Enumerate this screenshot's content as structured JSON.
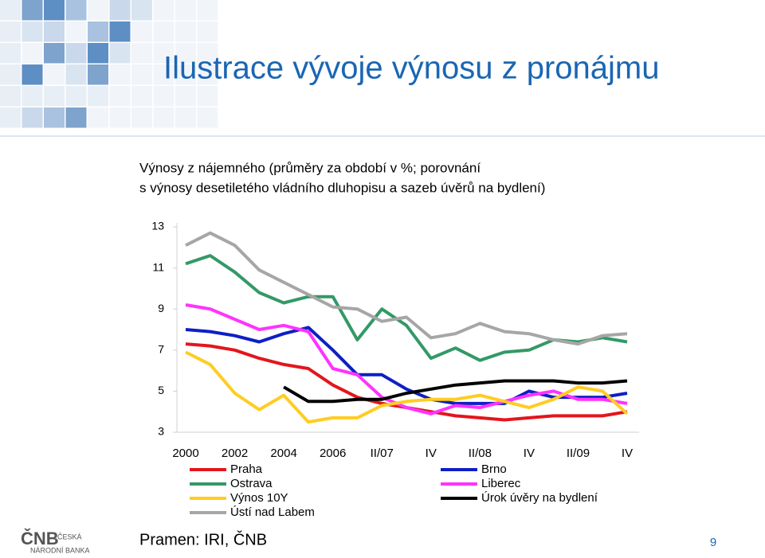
{
  "slide": {
    "title": "Ilustrace vývoje výnosu z pronájmu",
    "source": "Pramen: IRI, ČNB",
    "page_number": "9",
    "logo": [
      "ČNB",
      "ČESKÁ",
      "NÁRODNÍ BANKA"
    ]
  },
  "chart_data": {
    "type": "line",
    "title": [
      "Výnosy z nájemného (průměry za období v %; porovnání",
      "s výnosy desetiletého vládního dluhopisu a sazeb úvěrů na bydlení)"
    ],
    "categories": [
      "2000",
      null,
      "2002",
      null,
      "2004",
      null,
      "2006",
      null,
      "II/07",
      null,
      "IV",
      null,
      "II/08",
      null,
      "IV",
      null,
      "II/09",
      null,
      "IV"
    ],
    "ylim": [
      3,
      13
    ],
    "yticks": [
      3,
      5,
      7,
      9,
      11,
      13
    ],
    "grid": false,
    "series": [
      {
        "name": "Praha",
        "color": "#e3161c",
        "values": [
          7.3,
          7.2,
          7.0,
          6.6,
          6.3,
          6.1,
          5.3,
          4.7,
          4.4,
          4.2,
          4.0,
          3.8,
          3.7,
          3.6,
          3.7,
          3.8,
          3.8,
          3.8,
          4.0
        ]
      },
      {
        "name": "Brno",
        "color": "#0d1fc4",
        "values": [
          8.0,
          7.9,
          7.7,
          7.4,
          7.8,
          8.1,
          7.0,
          5.8,
          5.8,
          5.1,
          4.6,
          4.4,
          4.4,
          4.4,
          5.0,
          4.7,
          4.7,
          4.7,
          4.9
        ]
      },
      {
        "name": "Ostrava",
        "color": "#339966",
        "values": [
          11.2,
          11.6,
          10.8,
          9.8,
          9.3,
          9.6,
          9.6,
          7.5,
          9.0,
          8.2,
          6.6,
          7.1,
          6.5,
          6.9,
          7.0,
          7.5,
          7.4,
          7.6,
          7.4
        ]
      },
      {
        "name": "Liberec",
        "color": "#ff33ff",
        "values": [
          9.2,
          9.0,
          8.5,
          8.0,
          8.2,
          7.9,
          6.1,
          5.8,
          4.7,
          4.2,
          3.9,
          4.3,
          4.2,
          4.5,
          4.8,
          5.0,
          4.6,
          4.6,
          4.4
        ]
      },
      {
        "name": "Výnos 10Y",
        "color": "#ffcc22",
        "values": [
          6.9,
          6.3,
          4.9,
          4.1,
          4.8,
          3.5,
          3.7,
          3.7,
          4.3,
          4.5,
          4.6,
          4.6,
          4.8,
          4.5,
          4.2,
          4.6,
          5.2,
          5.0,
          3.9
        ]
      },
      {
        "name": "Úrok úvěry na bydlení",
        "color": "#000000",
        "values": [
          null,
          null,
          null,
          null,
          5.2,
          4.5,
          4.5,
          4.6,
          4.6,
          4.9,
          5.1,
          5.3,
          5.4,
          5.5,
          5.5,
          5.5,
          5.4,
          5.4,
          5.5
        ]
      },
      {
        "name": "Ústí nad Labem",
        "color": "#a6a6a6",
        "values": [
          12.1,
          12.7,
          12.1,
          10.9,
          10.3,
          9.7,
          9.1,
          9.0,
          8.4,
          8.6,
          7.6,
          7.8,
          8.3,
          7.9,
          7.8,
          7.5,
          7.3,
          7.7,
          7.8
        ]
      }
    ]
  }
}
